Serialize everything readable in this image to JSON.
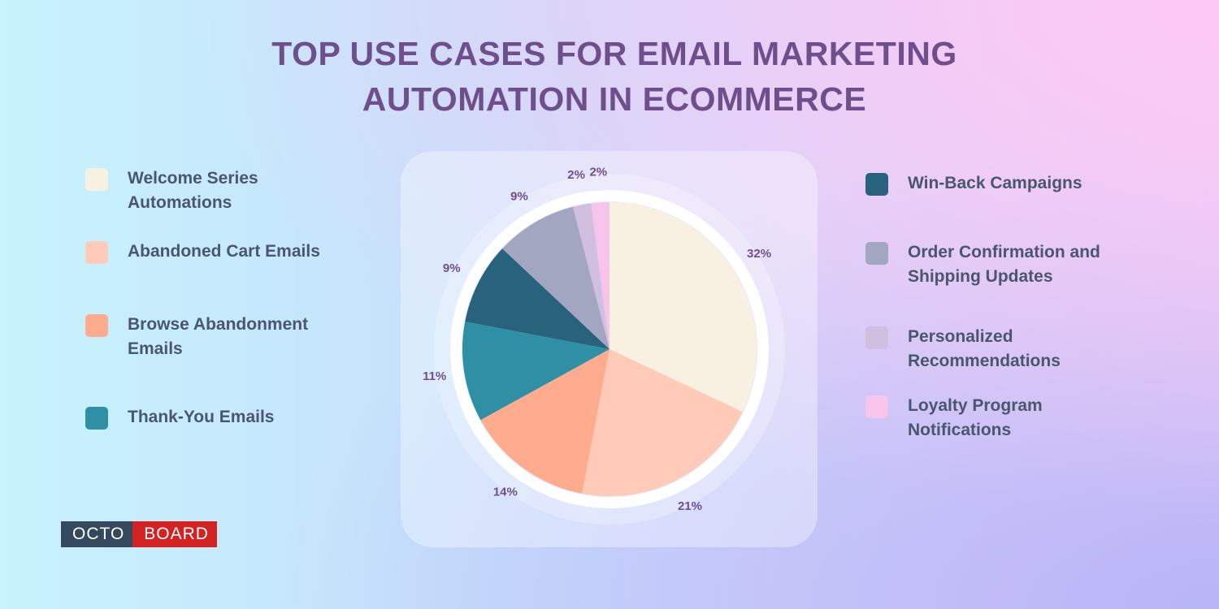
{
  "chart_data": {
    "type": "pie",
    "title": "TOP USE CASES FOR EMAIL MARKETING AUTOMATION IN ECOMMERCE",
    "categories": [
      "Welcome Series Automations",
      "Abandoned Cart Emails",
      "Browse Abandonment Emails",
      "Thank-You Emails",
      "Win-Back Campaigns",
      "Order Confirmation and Shipping Updates",
      "Personalized Recommendations",
      "Loyalty Program Notifications"
    ],
    "values": [
      32,
      21,
      14,
      11,
      9,
      9,
      2,
      2
    ],
    "value_labels": [
      "32%",
      "21%",
      "14%",
      "11%",
      "9%",
      "9%",
      "2%",
      "2%"
    ],
    "colors": [
      "#f8f1e1",
      "#ffcbb8",
      "#ffab8d",
      "#2f8fa4",
      "#29627c",
      "#a3a6c0",
      "#d1bfe0",
      "#f7c4ec"
    ]
  },
  "brand": {
    "left": "OCTO",
    "right": "BOARD"
  }
}
